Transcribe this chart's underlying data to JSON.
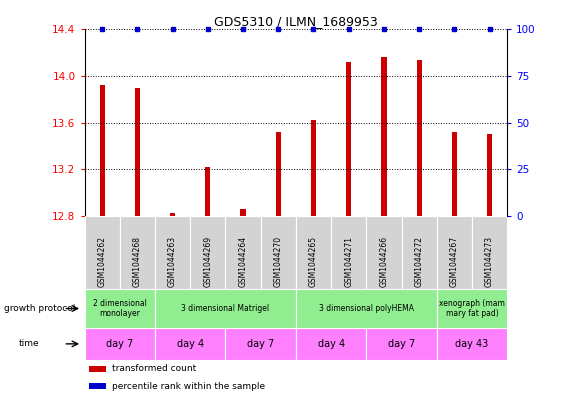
{
  "title": "GDS5310 / ILMN_1689953",
  "samples": [
    "GSM1044262",
    "GSM1044268",
    "GSM1044263",
    "GSM1044269",
    "GSM1044264",
    "GSM1044270",
    "GSM1044265",
    "GSM1044271",
    "GSM1044266",
    "GSM1044272",
    "GSM1044267",
    "GSM1044273"
  ],
  "bar_values": [
    13.92,
    13.9,
    12.83,
    13.22,
    12.86,
    13.52,
    13.62,
    14.12,
    14.16,
    14.14,
    13.52,
    13.5
  ],
  "dot_values_right": [
    100,
    100,
    100,
    100,
    100,
    100,
    100,
    100,
    100,
    100,
    100,
    100
  ],
  "bar_color": "#cc0000",
  "dot_color": "#0000cc",
  "ylim_left": [
    12.8,
    14.4
  ],
  "ylim_right": [
    0,
    100
  ],
  "yticks_left": [
    12.8,
    13.2,
    13.6,
    14.0,
    14.4
  ],
  "yticks_right": [
    0,
    25,
    50,
    75,
    100
  ],
  "bar_width": 0.15,
  "growth_protocol_groups": [
    {
      "label": "2 dimensional\nmonolayer",
      "start": 0,
      "end": 2
    },
    {
      "label": "3 dimensional Matrigel",
      "start": 2,
      "end": 6
    },
    {
      "label": "3 dimensional polyHEMA",
      "start": 6,
      "end": 10
    },
    {
      "label": "xenograph (mam\nmary fat pad)",
      "start": 10,
      "end": 12
    }
  ],
  "time_groups": [
    {
      "label": "day 7",
      "start": 0,
      "end": 2
    },
    {
      "label": "day 4",
      "start": 2,
      "end": 4
    },
    {
      "label": "day 7",
      "start": 4,
      "end": 6
    },
    {
      "label": "day 4",
      "start": 6,
      "end": 8
    },
    {
      "label": "day 7",
      "start": 8,
      "end": 10
    },
    {
      "label": "day 43",
      "start": 10,
      "end": 12
    }
  ],
  "protocol_color": "#90ee90",
  "time_color": "#ff80ff",
  "sample_bg_color": "#d3d3d3",
  "legend_items": [
    {
      "label": "transformed count",
      "color": "#cc0000"
    },
    {
      "label": "percentile rank within the sample",
      "color": "#0000cc"
    }
  ],
  "row_labels": [
    "growth protocol",
    "time"
  ]
}
